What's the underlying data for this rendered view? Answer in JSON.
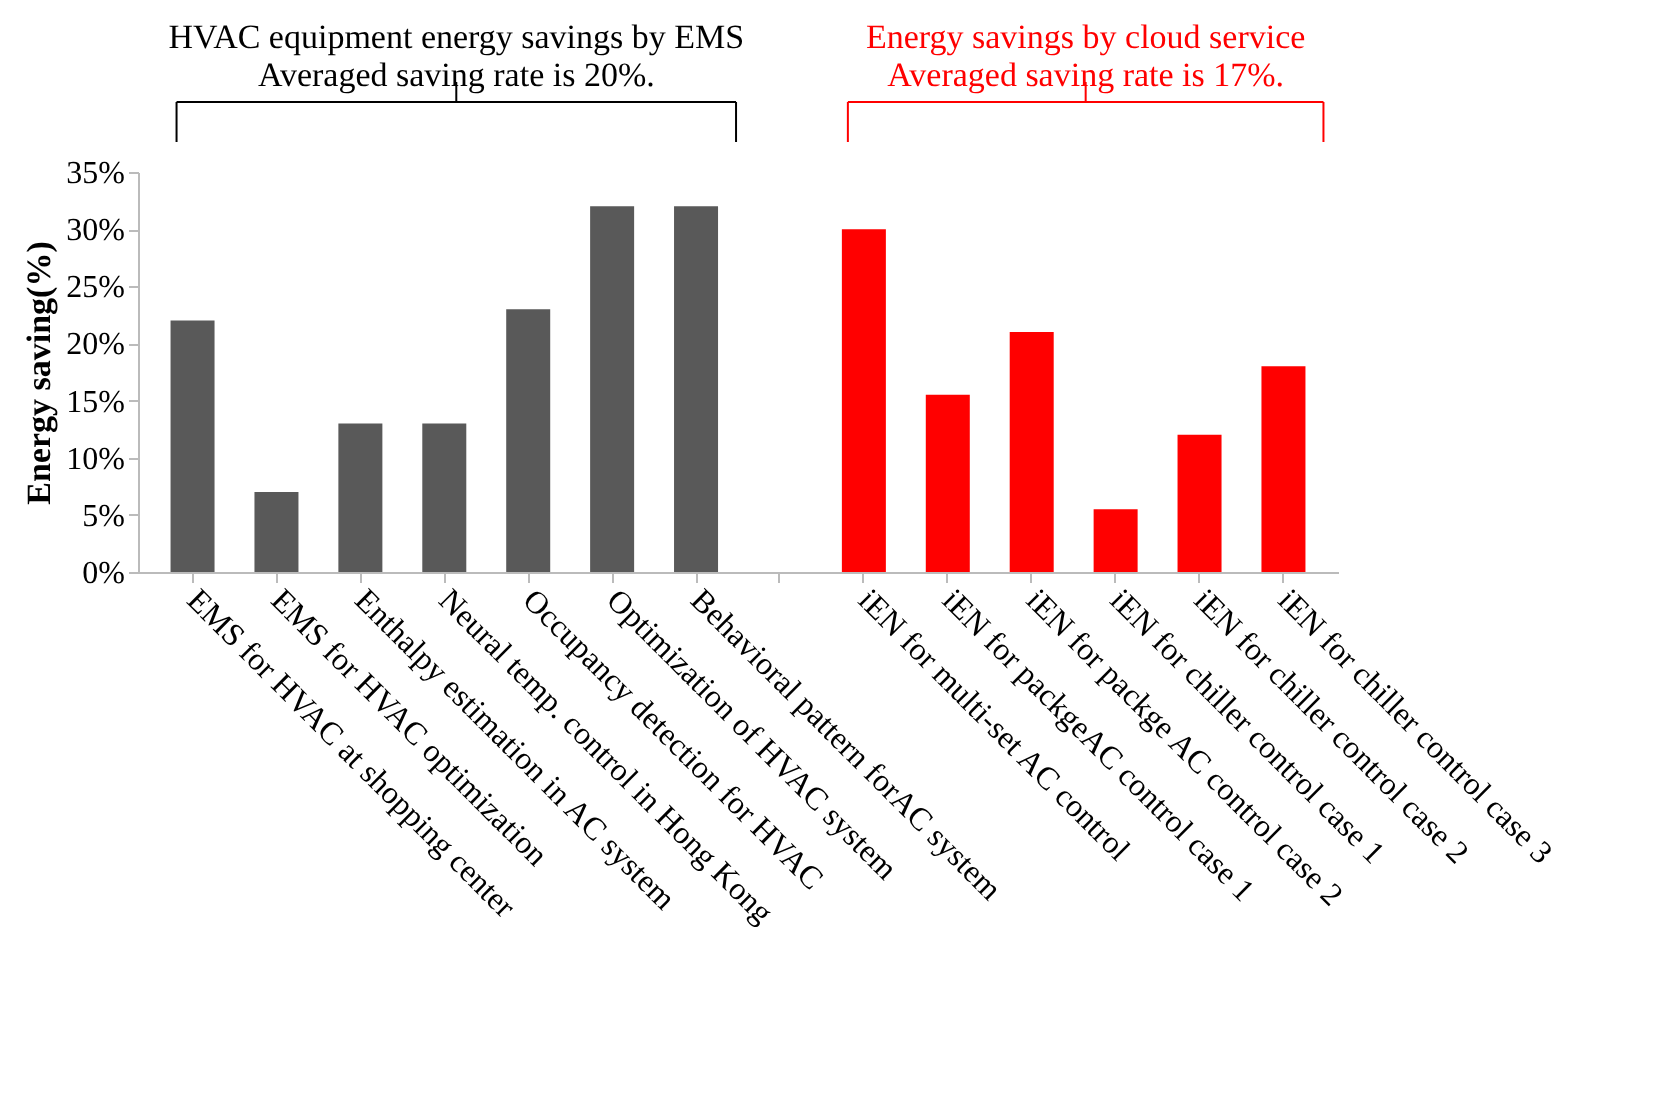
{
  "chart_data": {
    "type": "bar",
    "categories": [
      "EMS for HVAC at shopping center",
      "EMS for HVAC optimization",
      "Enthalpy estimation in AC system",
      "Neural temp. control in Hong Kong",
      "Occupancy detection for HVAC",
      "Optimization of HVAC system",
      "Behavioral pattern forAC system",
      null,
      "iEN for multi-set AC control",
      "iEN for packgeAC control case 1",
      "iEN for packge AC control case 2",
      "iEN for chiller control case 1",
      "iEN for chiller control case 2",
      "iEN for chiller control case 3"
    ],
    "values": [
      22,
      7,
      13,
      13,
      23,
      32,
      32,
      null,
      30,
      15.5,
      21,
      5.5,
      12,
      18
    ],
    "colors": [
      "#595959",
      "#595959",
      "#595959",
      "#595959",
      "#595959",
      "#595959",
      "#595959",
      "#595959",
      "#ff0000",
      "#ff0000",
      "#ff0000",
      "#ff0000",
      "#ff0000",
      "#ff0000"
    ],
    "ylabel": "Energy saving(%)",
    "ylim": [
      0,
      35
    ],
    "yticks": [
      {
        "value": 0,
        "label": "0%"
      },
      {
        "value": 5,
        "label": "5%"
      },
      {
        "value": 10,
        "label": "10%"
      },
      {
        "value": 15,
        "label": "15%"
      },
      {
        "value": 20,
        "label": "20%"
      },
      {
        "value": 25,
        "label": "25%"
      },
      {
        "value": 30,
        "label": "30%"
      },
      {
        "value": 35,
        "label": "35%"
      }
    ],
    "grid": false,
    "annotations": [
      "HVAC equipment energy savings by EMS\nAveraged saving rate is 20%.",
      "Energy savings  by cloud service\nAveraged saving rate is 17%."
    ]
  }
}
